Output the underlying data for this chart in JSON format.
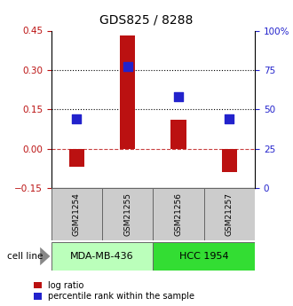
{
  "title": "GDS825 / 8288",
  "samples": [
    "GSM21254",
    "GSM21255",
    "GSM21256",
    "GSM21257"
  ],
  "log_ratio": [
    -0.07,
    0.43,
    0.11,
    -0.09
  ],
  "percentile_rank_pct": [
    44,
    77,
    58,
    44
  ],
  "cell_lines": [
    {
      "label": "MDA-MB-436",
      "samples": [
        0,
        1
      ],
      "color": "#bbffbb"
    },
    {
      "label": "HCC 1954",
      "samples": [
        2,
        3
      ],
      "color": "#33dd33"
    }
  ],
  "ylim_left": [
    -0.15,
    0.45
  ],
  "ylim_right": [
    0,
    100
  ],
  "yticks_left": [
    -0.15,
    0.0,
    0.15,
    0.3,
    0.45
  ],
  "yticks_right": [
    0,
    25,
    50,
    75,
    100
  ],
  "hlines_dotted": [
    0.15,
    0.3
  ],
  "hline_dashed": 0.0,
  "bar_color": "#bb1111",
  "dot_color": "#2222cc",
  "bar_width": 0.3,
  "dot_size": 45,
  "title_fontsize": 10,
  "tick_fontsize": 7.5,
  "sample_fontsize": 6.5,
  "cell_fontsize": 8,
  "legend_fontsize": 7,
  "cell_line_label": "cell line"
}
